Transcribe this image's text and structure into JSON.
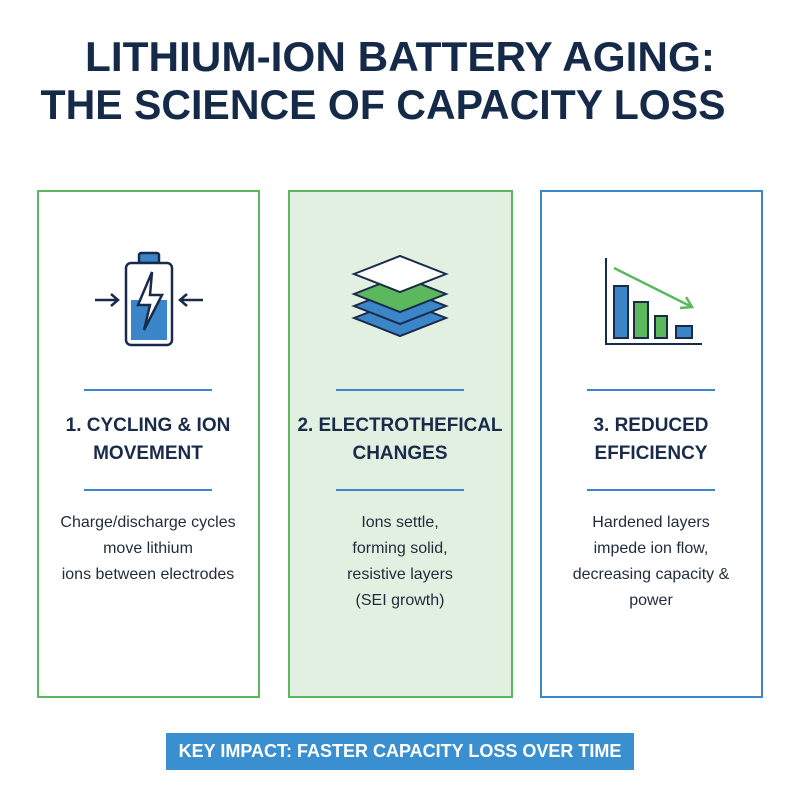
{
  "title": {
    "lines": [
      "LITHIUM-ION BATTERY AGING:",
      "THE SCIENCE OF CAPACITY LOSS"
    ]
  },
  "panels": [
    {
      "heading": [
        "1. CYCLING & ION",
        "MOVEMENT"
      ],
      "body": [
        "Charge/discharge cycles",
        "move lithium",
        "ions between electrodes"
      ]
    },
    {
      "heading": [
        "2. ELECTROTHEFICAL",
        "CHANGES"
      ],
      "body": [
        "Ions settle,",
        "forming solid,",
        "resistive layers",
        "(SEI growth)"
      ]
    },
    {
      "heading": [
        "3. REDUCED",
        "EFFICIENCY"
      ],
      "body": [
        "Hardened layers",
        "impede ion flow,",
        "decreasing capacity &",
        "power"
      ]
    }
  ],
  "banner": "KEY IMPACT: FASTER CAPACITY LOSS OVER TIME"
}
